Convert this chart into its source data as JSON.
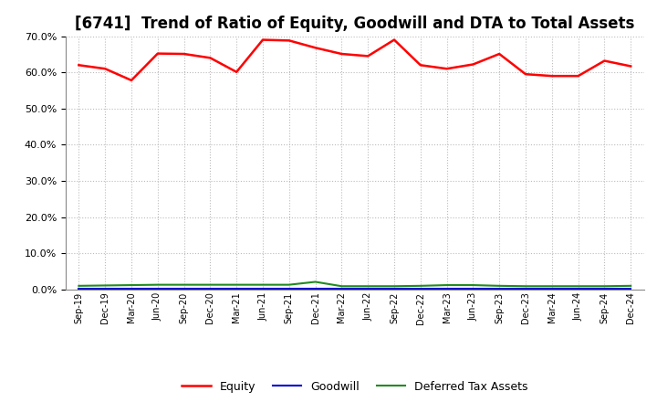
{
  "title": "[6741]  Trend of Ratio of Equity, Goodwill and DTA to Total Assets",
  "x_labels": [
    "Sep-19",
    "Dec-19",
    "Mar-20",
    "Jun-20",
    "Sep-20",
    "Dec-20",
    "Mar-21",
    "Jun-21",
    "Sep-21",
    "Dec-21",
    "Mar-22",
    "Jun-22",
    "Sep-22",
    "Dec-22",
    "Mar-23",
    "Jun-23",
    "Sep-23",
    "Dec-23",
    "Mar-24",
    "Jun-24",
    "Sep-24",
    "Dec-24"
  ],
  "equity": [
    0.62,
    0.61,
    0.578,
    0.652,
    0.651,
    0.64,
    0.601,
    0.69,
    0.688,
    0.668,
    0.651,
    0.645,
    0.69,
    0.62,
    0.61,
    0.622,
    0.651,
    0.595,
    0.59,
    0.59,
    0.632,
    0.617
  ],
  "goodwill": [
    0.003,
    0.003,
    0.003,
    0.003,
    0.003,
    0.003,
    0.003,
    0.003,
    0.003,
    0.003,
    0.003,
    0.003,
    0.003,
    0.003,
    0.003,
    0.003,
    0.003,
    0.003,
    0.003,
    0.003,
    0.003,
    0.003
  ],
  "dta": [
    0.01,
    0.011,
    0.012,
    0.013,
    0.013,
    0.013,
    0.013,
    0.013,
    0.013,
    0.021,
    0.009,
    0.009,
    0.009,
    0.01,
    0.012,
    0.012,
    0.01,
    0.009,
    0.009,
    0.009,
    0.009,
    0.01
  ],
  "equity_color": "#ff0000",
  "goodwill_color": "#0000cd",
  "dta_color": "#228b22",
  "ylim": [
    0.0,
    0.7
  ],
  "yticks": [
    0.0,
    0.1,
    0.2,
    0.3,
    0.4,
    0.5,
    0.6,
    0.7
  ],
  "background_color": "#ffffff",
  "plot_bg_color": "#ffffff",
  "grid_color": "#bbbbbb",
  "title_fontsize": 12,
  "legend_labels": [
    "Equity",
    "Goodwill",
    "Deferred Tax Assets"
  ]
}
